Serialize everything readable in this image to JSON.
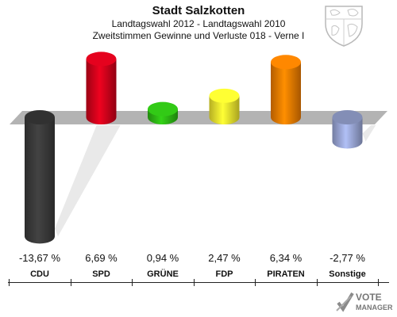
{
  "header": {
    "title": "Stadt Salzkotten",
    "subtitle": "Landtagswahl 2012 - Landtagswahl 2010",
    "subtitle2": "Zweitstimmen Gewinne und Verluste 018 - Verne I"
  },
  "logo": {
    "line1": "VOTE",
    "line2": "MANAGER"
  },
  "chart_data": {
    "type": "bar",
    "title": "Stadt Salzkotten",
    "categories": [
      "CDU",
      "SPD",
      "GRÜNE",
      "FDP",
      "PIRATEN",
      "Sonstige"
    ],
    "values": [
      -13.67,
      6.69,
      0.94,
      2.47,
      6.34,
      -2.77
    ],
    "value_labels": [
      "-13,67 %",
      "6,69 %",
      "0,94 %",
      "2,47 %",
      "6,34 %",
      "-2,77 %"
    ],
    "colors": [
      "#3a3a3a",
      "#d0021b",
      "#2db814",
      "#f2e92e",
      "#f07c00",
      "#9aa7d6"
    ],
    "ylim": [
      -14,
      8
    ],
    "grid": false
  }
}
